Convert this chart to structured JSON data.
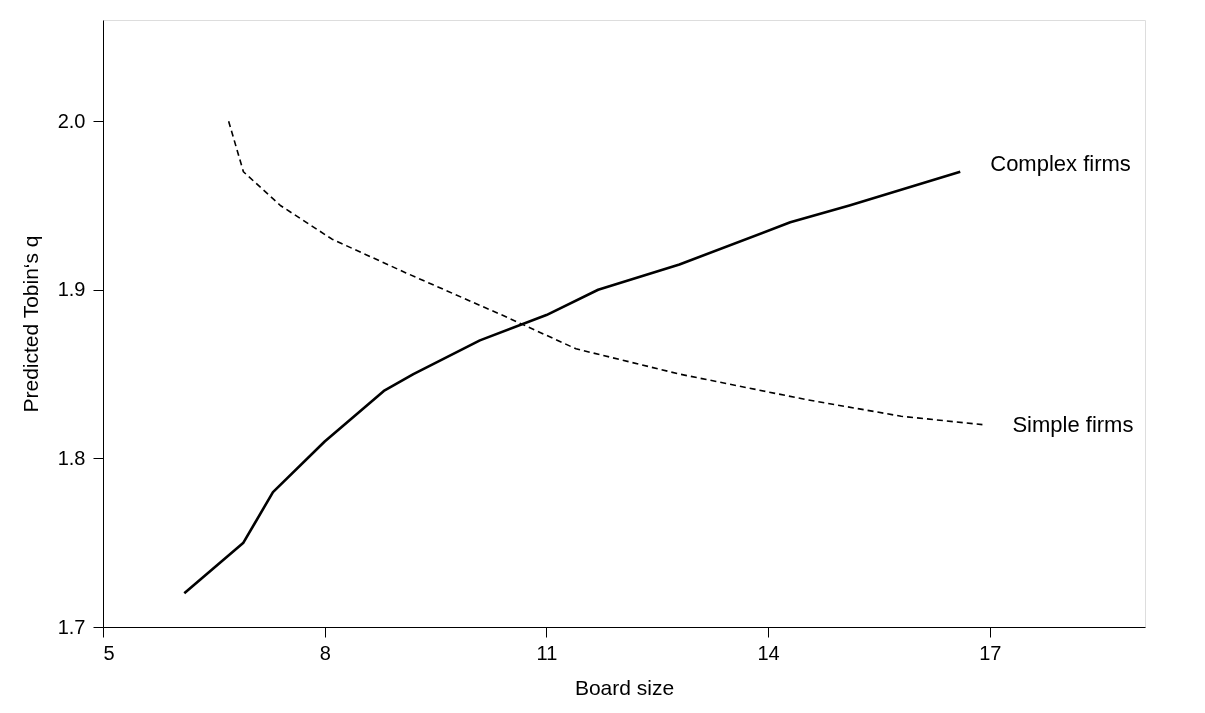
{
  "chart_data": {
    "type": "line",
    "xlabel": "Board size",
    "ylabel": "Predicted Tobin‘s q",
    "xlim": [
      5,
      19.1
    ],
    "ylim": [
      1.7,
      2.06
    ],
    "xticks": [
      5,
      8,
      11,
      14,
      17
    ],
    "yticks": [
      1.7,
      1.8,
      1.9,
      {
        "value": 2.0,
        "label": "2.0"
      }
    ],
    "grid": false,
    "marker": "none",
    "series": [
      {
        "name": "Complex firms",
        "color": "#000000",
        "line_style": "solid",
        "x": [
          6.1,
          6.9,
          7.3,
          8.0,
          8.8,
          9.2,
          10.1,
          11.0,
          11.7,
          12.8,
          14.3,
          15.1,
          16.6
        ],
        "values": [
          1.72,
          1.75,
          1.78,
          1.81,
          1.84,
          1.85,
          1.87,
          1.885,
          1.9,
          1.915,
          1.94,
          1.95,
          1.97
        ]
      },
      {
        "name": "Simple firms",
        "color": "#000000",
        "line_style": "dashed",
        "x": [
          6.7,
          6.9,
          7.4,
          8.1,
          9.1,
          10.4,
          11.4,
          12.8,
          14.5,
          15.8,
          16.9
        ],
        "values": [
          2.0,
          1.97,
          1.95,
          1.93,
          1.91,
          1.885,
          1.865,
          1.85,
          1.835,
          1.825,
          1.82
        ]
      }
    ]
  }
}
